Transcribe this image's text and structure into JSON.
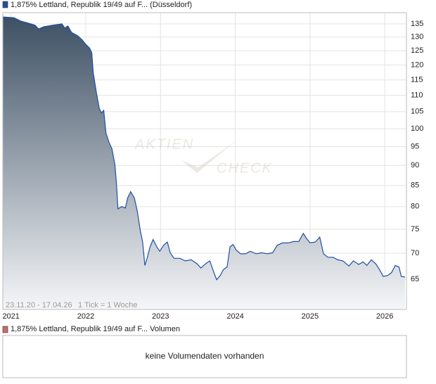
{
  "chart_data": {
    "type": "line",
    "series": [
      {
        "name": "1,875% Lettland, Republik 19/49 auf F... (Düsseldorf)",
        "color": "#1f4fa3",
        "x": [
          2020.89,
          2021.04,
          2021.13,
          2021.23,
          2021.32,
          2021.37,
          2021.44,
          2021.56,
          2021.68,
          2021.72,
          2021.76,
          2021.81,
          2021.89,
          2021.95,
          2022.0,
          2022.05,
          2022.08,
          2022.1,
          2022.14,
          2022.18,
          2022.21,
          2022.24,
          2022.27,
          2022.31,
          2022.35,
          2022.39,
          2022.41,
          2022.43,
          2022.48,
          2022.53,
          2022.56,
          2022.6,
          2022.65,
          2022.69,
          2022.73,
          2022.76,
          2022.79,
          2022.82,
          2022.86,
          2022.9,
          2022.95,
          2022.99,
          2023.04,
          2023.09,
          2023.13,
          2023.18,
          2023.26,
          2023.33,
          2023.41,
          2023.49,
          2023.54,
          2023.6,
          2023.66,
          2023.7,
          2023.75,
          2023.8,
          2023.84,
          2023.89,
          2023.93,
          2023.97,
          2024.01,
          2024.07,
          2024.14,
          2024.2,
          2024.28,
          2024.35,
          2024.43,
          2024.5,
          2024.56,
          2024.63,
          2024.71,
          2024.78,
          2024.85,
          2024.91,
          2024.95,
          2025.0,
          2025.07,
          2025.13,
          2025.18,
          2025.24,
          2025.31,
          2025.37,
          2025.44,
          2025.52,
          2025.58,
          2025.65,
          2025.71,
          2025.76,
          2025.82,
          2025.88,
          2025.93,
          2025.98,
          2026.04,
          2026.09,
          2026.14,
          2026.19,
          2026.22,
          2026.27
        ],
        "values": [
          137.7,
          137.4,
          136.1,
          135.3,
          134.5,
          133.1,
          133.9,
          134.5,
          135.0,
          133.4,
          134.2,
          131.7,
          130.5,
          129.0,
          127.3,
          126.0,
          124.3,
          117.4,
          111.1,
          106.1,
          104.6,
          105.4,
          98.8,
          96.2,
          94.4,
          90.2,
          85.5,
          79.5,
          80.0,
          79.7,
          82.0,
          83.5,
          82.0,
          78.9,
          74.6,
          72.3,
          67.6,
          69.0,
          71.3,
          72.8,
          71.3,
          70.4,
          71.6,
          72.3,
          70.1,
          69.0,
          69.0,
          68.5,
          68.7,
          67.9,
          67.1,
          67.9,
          68.5,
          66.8,
          64.9,
          65.7,
          66.8,
          67.3,
          71.3,
          71.8,
          70.7,
          69.9,
          69.9,
          70.4,
          69.9,
          70.1,
          69.9,
          70.1,
          71.6,
          72.1,
          72.1,
          72.4,
          72.4,
          74.1,
          73.1,
          72.1,
          72.3,
          73.3,
          69.9,
          69.2,
          69.2,
          68.7,
          68.5,
          67.5,
          68.5,
          67.8,
          68.3,
          67.6,
          68.7,
          67.9,
          66.8,
          65.5,
          65.7,
          66.2,
          67.6,
          67.3,
          65.5,
          65.4
        ]
      }
    ],
    "area_gradient": [
      "#3d5064",
      "#f5f6f8"
    ],
    "xlim": [
      2020.89,
      2026.29
    ],
    "xticks": [
      2021,
      2022,
      2023,
      2024,
      2025,
      2026
    ],
    "ylim": [
      59.6,
      139.4
    ],
    "yticks": [
      65,
      70,
      75,
      80,
      85,
      90,
      95,
      100,
      105,
      110,
      115,
      120,
      125,
      130,
      135
    ],
    "log_scale": "y",
    "grid": true,
    "annotations": [
      "23.11.20 - 17.04.26",
      "1 Tick = 1 Woche"
    ],
    "watermark": [
      "AKTIEN",
      "CHECK"
    ],
    "volume_panel": {
      "name": "1,875% Lettland, Republik 19/49 auf F... Volumen",
      "color": "#c96a6a",
      "message": "keine Volumendaten vorhanden"
    }
  }
}
